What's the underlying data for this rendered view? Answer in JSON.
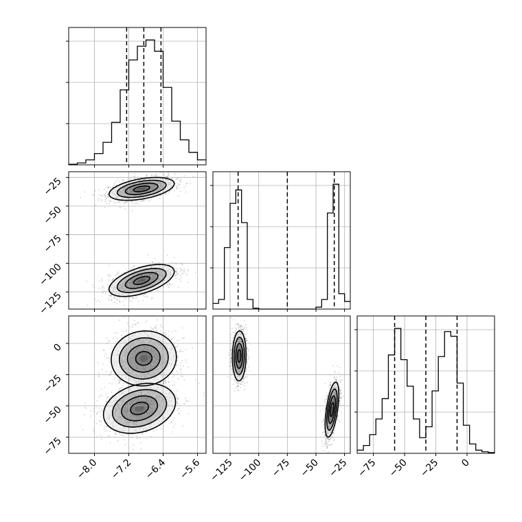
{
  "chart_data": {
    "type": "corner",
    "parameters": [
      {
        "ticks": [
          -8.0,
          -7.2,
          -6.4,
          -5.6
        ],
        "tick_labels": [
          "−8.0",
          "−7.2",
          "−6.4",
          "−5.6"
        ],
        "range": [
          -8.6,
          -5.4
        ]
      },
      {
        "ticks": [
          -125,
          -100,
          -75,
          -50,
          -25
        ],
        "tick_labels": [
          "−125",
          "−100",
          "−75",
          "−50",
          "−25"
        ],
        "range": [
          -140,
          -20
        ]
      },
      {
        "ticks": [
          -75,
          -50,
          -25,
          0
        ],
        "tick_labels": [
          "−75",
          "−50",
          "−25",
          "0"
        ],
        "range": [
          -88,
          22
        ]
      }
    ],
    "histograms": [
      {
        "parameter": 0,
        "bin_edges": [
          -8.6,
          -8.4,
          -8.2,
          -8.0,
          -7.8,
          -7.6,
          -7.4,
          -7.2,
          -7.0,
          -6.8,
          -6.6,
          -6.4,
          -6.2,
          -6.0,
          -5.8,
          -5.6,
          -5.4
        ],
        "values": [
          0.5,
          1.5,
          4,
          9,
          18,
          34,
          60,
          84,
          95,
          100,
          91,
          62,
          35,
          20,
          10,
          4
        ],
        "quantiles": [
          -7.25,
          -6.85,
          -6.45
        ]
      },
      {
        "parameter": 1,
        "bin_edges": [
          -140,
          -135,
          -130,
          -125,
          -120,
          -115,
          -110,
          -105,
          -100,
          -95,
          -90,
          -85,
          -80,
          -75,
          -70,
          -65,
          -60,
          -55,
          -50,
          -45,
          -40,
          -35,
          -30,
          -25,
          -20
        ],
        "values": [
          3,
          5,
          32,
          55,
          62,
          45,
          5,
          0.5,
          0,
          0,
          0,
          0,
          0,
          0,
          0,
          0,
          0,
          0,
          1,
          5,
          50,
          65,
          8,
          4
        ],
        "quantiles": [
          -118,
          -75,
          -34
        ]
      },
      {
        "parameter": 2,
        "bin_edges": [
          -88,
          -83,
          -78,
          -73,
          -68,
          -63,
          -58,
          -53,
          -48,
          -43,
          -38,
          -33,
          -28,
          -23,
          -18,
          -13,
          -8,
          -3,
          2,
          7,
          12,
          17,
          22
        ],
        "values": [
          2,
          5,
          12,
          22,
          35,
          63,
          80,
          60,
          43,
          22,
          10,
          17,
          40,
          62,
          78,
          75,
          45,
          18,
          6,
          2,
          1,
          0.5
        ],
        "quantiles": [
          -58,
          -33,
          -8
        ]
      }
    ],
    "pairs": [
      {
        "x": 0,
        "y": 1,
        "modes": [
          {
            "center": [
              -6.9,
              -35
            ],
            "sigma": [
              0.38,
              5
            ],
            "rho": 0.45
          },
          {
            "center": [
              -6.9,
              -115
            ],
            "sigma": [
              0.38,
              7
            ],
            "rho": 0.55
          }
        ]
      },
      {
        "x": 0,
        "y": 2,
        "modes": [
          {
            "center": [
              -6.85,
              -12
            ],
            "sigma": [
              0.38,
              11
            ],
            "rho": 0.05
          },
          {
            "center": [
              -6.95,
              -52
            ],
            "sigma": [
              0.42,
              10
            ],
            "rho": 0.25
          }
        ]
      },
      {
        "x": 1,
        "y": 2,
        "modes": [
          {
            "center": [
              -117,
              -10
            ],
            "sigma": [
              3,
              10
            ],
            "rho": 0.05
          },
          {
            "center": [
              -36,
              -53
            ],
            "sigma": [
              3,
              11
            ],
            "rho": 0.55
          }
        ]
      }
    ],
    "contour_levels_sigma": [
      0.5,
      1.0,
      1.5,
      2.0
    ],
    "grid": true,
    "colors": {
      "ink": "#000000",
      "grid": "#b0b0b0",
      "scatter": "#000000"
    }
  }
}
